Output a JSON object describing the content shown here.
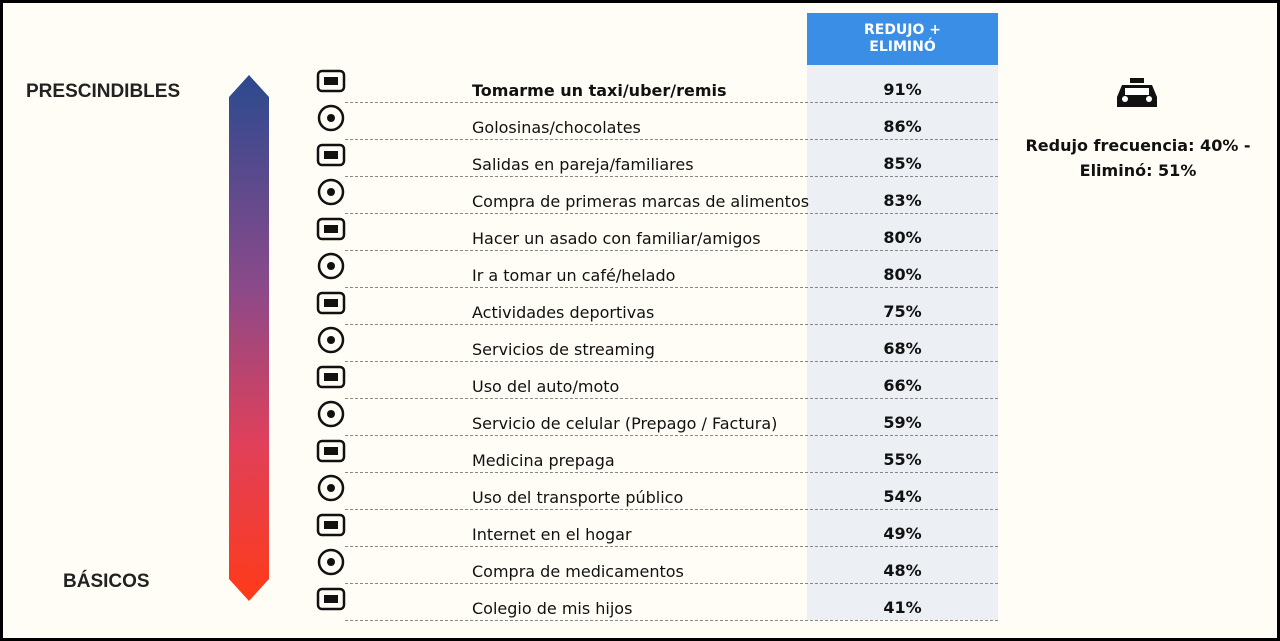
{
  "labels": {
    "top": "PRESCINDIBLES",
    "bottom": "BÁSICOS"
  },
  "table": {
    "header": "REDUJO + ELIMINÓ",
    "rows": [
      {
        "label": "Tomarme un taxi/uber/remis",
        "value": "91%"
      },
      {
        "label": "Golosinas/chocolates",
        "value": "86%"
      },
      {
        "label": "Salidas en pareja/familiares",
        "value": "85%"
      },
      {
        "label": "Compra de primeras marcas de alimentos",
        "value": "83%"
      },
      {
        "label": "Hacer un asado con familiar/amigos",
        "value": "80%"
      },
      {
        "label": "Ir a tomar un café/helado",
        "value": "80%"
      },
      {
        "label": "Actividades deportivas",
        "value": "75%"
      },
      {
        "label": "Servicios de streaming",
        "value": "68%"
      },
      {
        "label": "Uso del auto/moto",
        "value": "66%"
      },
      {
        "label": "Servicio de celular (Prepago / Factura)",
        "value": "59%"
      },
      {
        "label": "Medicina prepaga",
        "value": "55%"
      },
      {
        "label": "Uso del transporte público",
        "value": "54%"
      },
      {
        "label": "Internet en el hogar",
        "value": "49%"
      },
      {
        "label": "Compra de medicamentos",
        "value": "48%"
      },
      {
        "label": "Colegio de mis hijos",
        "value": "41%"
      }
    ]
  },
  "note": "Redujo frecuencia: 40% - Eliminó: 51%"
}
